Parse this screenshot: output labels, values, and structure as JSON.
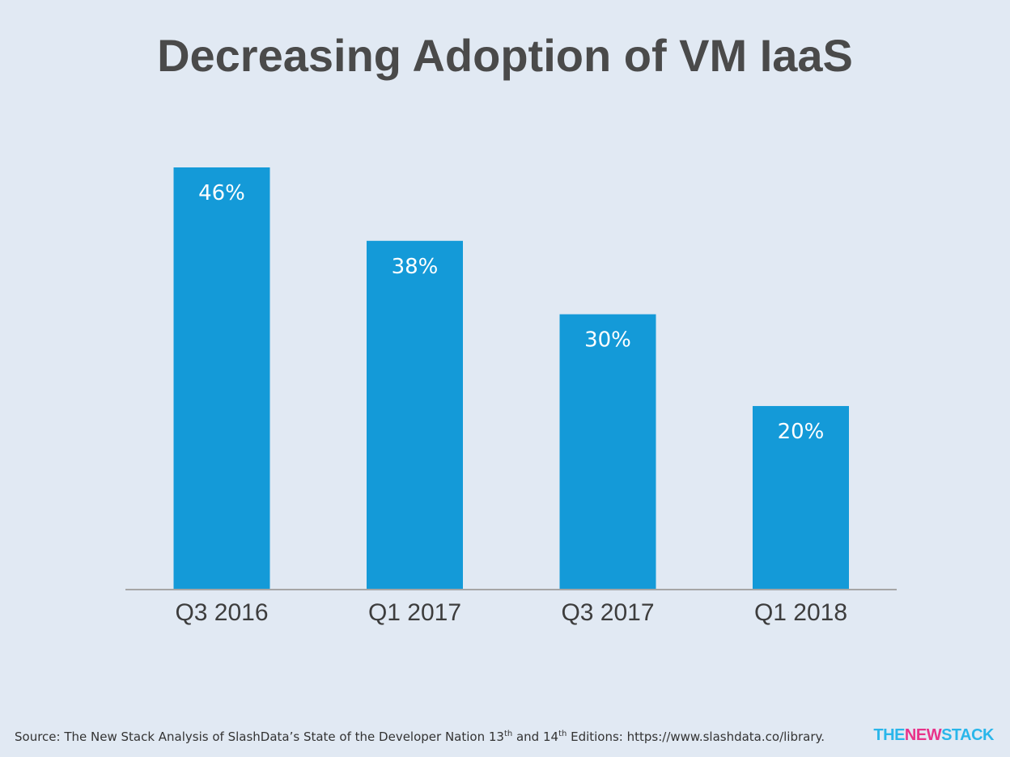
{
  "chart_data": {
    "type": "bar",
    "title": "Decreasing Adoption of VM IaaS",
    "categories": [
      "Q3 2016",
      "Q1 2017",
      "Q3 2017",
      "Q1 2018"
    ],
    "values": [
      46,
      38,
      30,
      20
    ],
    "value_labels": [
      "46%",
      "38%",
      "30%",
      "20%"
    ],
    "unit": "%",
    "ylim": [
      0,
      46
    ],
    "grid": false,
    "legend": "none",
    "bar_color": "#149ad8"
  },
  "footer": {
    "source_part1": "Source: The New Stack Analysis of SlashData’s State of the Developer Nation 13",
    "sup1": "th",
    "source_part2": " and 14",
    "sup2": "th",
    "source_part3": " Editions: https://www.slashdata.co/library."
  },
  "logo": {
    "the": "THE",
    "new": "NEW",
    "stack": "STACK"
  },
  "colors": {
    "background": "#e1e9f3",
    "bar": "#149ad8",
    "logo_blue": "#29b6ea",
    "logo_pink": "#e8338a"
  }
}
